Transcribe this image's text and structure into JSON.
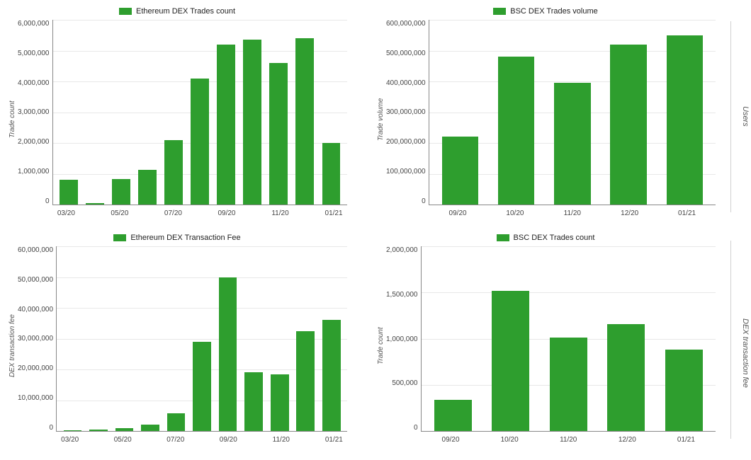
{
  "colors": {
    "bar": "#2e9e2e",
    "grid": "#e8e8e8",
    "axis": "#888888",
    "text": "#444444",
    "background": "#ffffff"
  },
  "side_labels": {
    "top": "Users",
    "bottom": "DEX transaction fee"
  },
  "charts": {
    "eth_trades_count": {
      "type": "bar",
      "legend": "Ethereum DEX Trades count",
      "ylabel": "Trade count",
      "ymax": 6000000,
      "ytick_step": 1000000,
      "ytick_labels": [
        "6,000,000",
        "5,000,000",
        "4,000,000",
        "3,000,000",
        "2,000,000",
        "1,000,000",
        "0"
      ],
      "categories": [
        "03/20",
        "04/20",
        "05/20",
        "06/20",
        "07/20",
        "08/20",
        "09/20",
        "10/20",
        "11/20",
        "12/20",
        "01/21"
      ],
      "x_tick_labels": [
        "03/20",
        "",
        "05/20",
        "",
        "07/20",
        "",
        "09/20",
        "",
        "11/20",
        "",
        "01/21"
      ],
      "values": [
        800000,
        50000,
        830000,
        1130000,
        2100000,
        4100000,
        5200000,
        5350000,
        4600000,
        5400000,
        2000000
      ],
      "bar_width": 0.7,
      "bar_color": "#2e9e2e"
    },
    "bsc_volume": {
      "type": "bar",
      "legend": "BSC DEX Trades volume",
      "ylabel": "Trade volume",
      "ymax": 600000000,
      "ytick_step": 100000000,
      "ytick_labels": [
        "600,000,000",
        "500,000,000",
        "400,000,000",
        "300,000,000",
        "200,000,000",
        "100,000,000",
        "0"
      ],
      "categories": [
        "09/20",
        "10/20",
        "11/20",
        "12/20",
        "01/21"
      ],
      "x_tick_labels": [
        "09/20",
        "10/20",
        "11/20",
        "12/20",
        "01/21"
      ],
      "values": [
        220000000,
        480000000,
        395000000,
        520000000,
        550000000
      ],
      "bar_width": 0.65,
      "bar_color": "#2e9e2e"
    },
    "eth_tx_fee": {
      "type": "bar",
      "legend": "Ethereum DEX Transaction Fee",
      "ylabel": "DEX transaction fee",
      "ymax": 60000000,
      "ytick_step": 10000000,
      "ytick_labels": [
        "60,000,000",
        "50,000,000",
        "40,000,000",
        "30,000,000",
        "20,000,000",
        "10,000,000",
        "0"
      ],
      "categories": [
        "03/20",
        "04/20",
        "05/20",
        "06/20",
        "07/20",
        "08/20",
        "09/20",
        "10/20",
        "11/20",
        "12/20",
        "01/21"
      ],
      "x_tick_labels": [
        "03/20",
        "",
        "05/20",
        "",
        "07/20",
        "",
        "09/20",
        "",
        "11/20",
        "",
        "01/21"
      ],
      "values": [
        300000,
        350000,
        900000,
        2000000,
        5800000,
        29000000,
        50000000,
        19000000,
        18500000,
        32500000,
        36000000
      ],
      "bar_width": 0.7,
      "bar_color": "#2e9e2e"
    },
    "bsc_trades_count": {
      "type": "bar",
      "legend": "BSC DEX Trades count",
      "ylabel": "Trade count",
      "ymax": 2000000,
      "ytick_step": 500000,
      "ytick_labels": [
        "2,000,000",
        "1,500,000",
        "1,000,000",
        "500,000",
        "0"
      ],
      "categories": [
        "09/20",
        "10/20",
        "11/20",
        "12/20",
        "01/21"
      ],
      "x_tick_labels": [
        "09/20",
        "10/20",
        "11/20",
        "12/20",
        "01/21"
      ],
      "values": [
        340000,
        1520000,
        1010000,
        1160000,
        880000
      ],
      "bar_width": 0.65,
      "bar_color": "#2e9e2e"
    }
  }
}
